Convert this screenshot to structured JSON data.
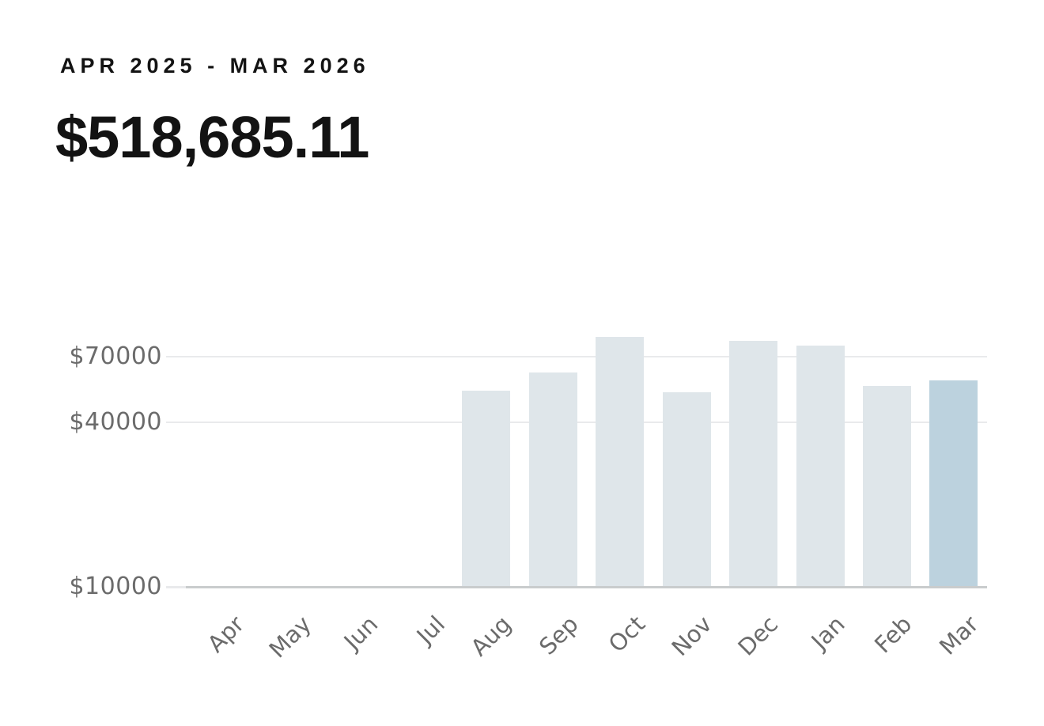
{
  "header": {
    "period_label": "APR 2025 - MAR 2026",
    "total_amount": "$518,685.11"
  },
  "chart_data": {
    "type": "bar",
    "title": "APR 2025 - MAR 2026",
    "subtitle_total": "$518,685.11",
    "categories": [
      "Apr",
      "May",
      "Jun",
      "Jul",
      "Aug",
      "Sep",
      "Oct",
      "Nov",
      "Dec",
      "Jan",
      "Feb",
      "Mar"
    ],
    "values": [
      0,
      0,
      0,
      0,
      52700,
      61400,
      83000,
      52100,
      80400,
      76900,
      54700,
      57485.11
    ],
    "xlabel": "",
    "ylabel": "",
    "y_scale": "log",
    "y_axis_min": 10000,
    "y_ticks": [
      70000,
      40000,
      10000
    ],
    "y_tick_labels": [
      "$70000",
      "$40000",
      "$10000"
    ],
    "grid": true,
    "legend": false,
    "highlighted_index": 11,
    "highlighted_category": "Mar",
    "colors": {
      "bar": "#dfe6ea",
      "bar_highlight": "#bcd2de",
      "gridline": "#e9eaec",
      "axis_line": "#c9cccd",
      "tick_label": "#6b6b6b",
      "title": "#131313",
      "background": "#ffffff"
    }
  }
}
